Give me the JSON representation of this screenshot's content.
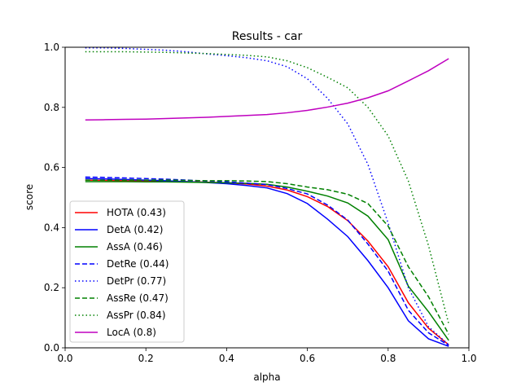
{
  "chart_data": {
    "type": "line",
    "title": "Results - car",
    "xlabel": "alpha",
    "ylabel": "score",
    "xlim": [
      0.0,
      1.0
    ],
    "ylim": [
      0.0,
      1.0
    ],
    "xticks": [
      "0.0",
      "0.2",
      "0.4",
      "0.6",
      "0.8",
      "1.0"
    ],
    "yticks": [
      "0.0",
      "0.2",
      "0.4",
      "0.6",
      "0.8",
      "1.0"
    ],
    "grid": false,
    "legend_position": "lower-left",
    "x": [
      0.05,
      0.1,
      0.15,
      0.2,
      0.25,
      0.3,
      0.35,
      0.4,
      0.45,
      0.5,
      0.55,
      0.6,
      0.65,
      0.7,
      0.75,
      0.8,
      0.85,
      0.9,
      0.95
    ],
    "series": [
      {
        "name": "HOTA (0.43)",
        "color": "#ff0000",
        "dash": "solid",
        "values": [
          0.558,
          0.557,
          0.556,
          0.555,
          0.554,
          0.553,
          0.551,
          0.549,
          0.545,
          0.538,
          0.525,
          0.503,
          0.47,
          0.423,
          0.355,
          0.27,
          0.15,
          0.065,
          0.01
        ]
      },
      {
        "name": "DetA (0.42)",
        "color": "#0000ff",
        "dash": "solid",
        "values": [
          0.563,
          0.562,
          0.56,
          0.558,
          0.556,
          0.553,
          0.55,
          0.546,
          0.54,
          0.532,
          0.513,
          0.48,
          0.428,
          0.37,
          0.29,
          0.2,
          0.09,
          0.03,
          0.005
        ]
      },
      {
        "name": "AssA (0.46)",
        "color": "#008000",
        "dash": "solid",
        "values": [
          0.553,
          0.553,
          0.553,
          0.552,
          0.552,
          0.551,
          0.55,
          0.549,
          0.547,
          0.544,
          0.535,
          0.521,
          0.505,
          0.482,
          0.438,
          0.36,
          0.205,
          0.12,
          0.025
        ]
      },
      {
        "name": "DetRe (0.44)",
        "color": "#0000ff",
        "dash": "dashed",
        "values": [
          0.568,
          0.567,
          0.565,
          0.563,
          0.561,
          0.558,
          0.555,
          0.552,
          0.548,
          0.543,
          0.53,
          0.512,
          0.475,
          0.425,
          0.345,
          0.255,
          0.125,
          0.05,
          0.008
        ]
      },
      {
        "name": "DetPr (0.77)",
        "color": "#0000ff",
        "dash": "dotted",
        "values": [
          0.998,
          0.998,
          0.996,
          0.993,
          0.99,
          0.985,
          0.978,
          0.972,
          0.965,
          0.955,
          0.935,
          0.895,
          0.83,
          0.745,
          0.61,
          0.415,
          0.2,
          0.07,
          0.01
        ]
      },
      {
        "name": "AssRe (0.47)",
        "color": "#008000",
        "dash": "dashed",
        "values": [
          0.558,
          0.558,
          0.558,
          0.558,
          0.558,
          0.557,
          0.556,
          0.556,
          0.555,
          0.553,
          0.546,
          0.535,
          0.526,
          0.511,
          0.48,
          0.405,
          0.27,
          0.17,
          0.045
        ]
      },
      {
        "name": "AssPr (0.84)",
        "color": "#008000",
        "dash": "dotted",
        "values": [
          0.985,
          0.985,
          0.985,
          0.984,
          0.983,
          0.981,
          0.979,
          0.976,
          0.973,
          0.968,
          0.955,
          0.932,
          0.9,
          0.865,
          0.8,
          0.705,
          0.555,
          0.34,
          0.08
        ]
      },
      {
        "name": "LocA (0.8)",
        "color": "#bf00bf",
        "dash": "solid",
        "values": [
          0.758,
          0.759,
          0.76,
          0.761,
          0.763,
          0.765,
          0.767,
          0.77,
          0.773,
          0.776,
          0.782,
          0.79,
          0.801,
          0.814,
          0.832,
          0.855,
          0.888,
          0.922,
          0.962
        ]
      }
    ]
  }
}
